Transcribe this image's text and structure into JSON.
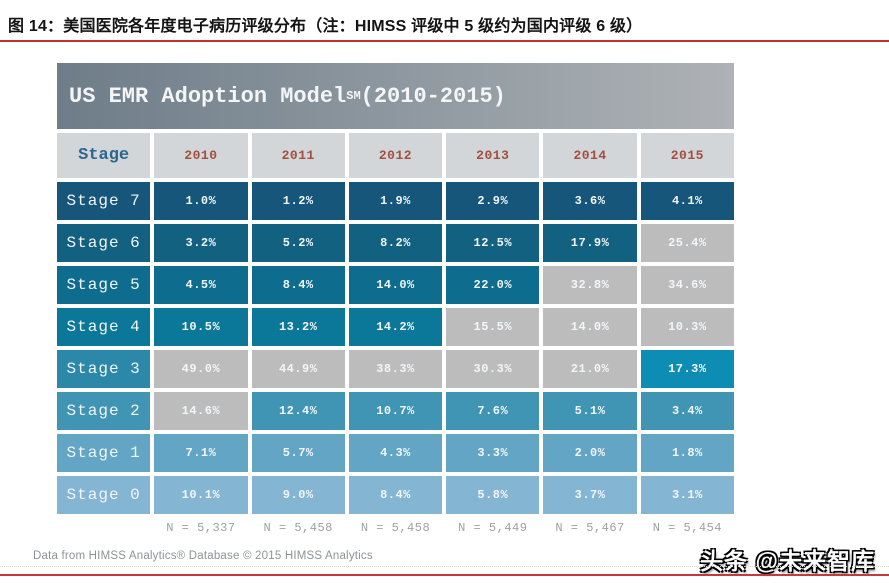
{
  "page": {
    "caption": "图 14：美国医院各年度电子病历评级分布（注：HIMSS 评级中 5 级约为国内评级 6 级）",
    "source_note": "Data from HIMSS Analytics® Database © 2015 HIMSS Analytics",
    "watermark": "头条 @未来智库",
    "accent_red": "#c22f2f"
  },
  "table": {
    "banner": {
      "title": "US EMR Adoption Model",
      "trademark": "SM",
      "range": " (2010-2015)"
    },
    "header": {
      "stage_label": "Stage",
      "years": [
        "2010",
        "2011",
        "2012",
        "2013",
        "2014",
        "2015"
      ]
    },
    "rows": [
      {
        "label": "Stage 7",
        "row_color": "#16567b",
        "values": [
          "1.0%",
          "1.2%",
          "1.9%",
          "2.9%",
          "3.6%",
          "4.1%"
        ],
        "cell_colors": [
          "#16567b",
          "#16567b",
          "#16567b",
          "#16567b",
          "#16567b",
          "#16567b"
        ]
      },
      {
        "label": "Stage 6",
        "row_color": "#126181",
        "values": [
          "3.2%",
          "5.2%",
          "8.2%",
          "12.5%",
          "17.9%",
          "25.4%"
        ],
        "cell_colors": [
          "#126181",
          "#126181",
          "#126181",
          "#126181",
          "#126181",
          "#bcbcbc"
        ]
      },
      {
        "label": "Stage 5",
        "row_color": "#0e6c8f",
        "values": [
          "4.5%",
          "8.4%",
          "14.0%",
          "22.0%",
          "32.8%",
          "34.6%"
        ],
        "cell_colors": [
          "#0e6c8f",
          "#0e6c8f",
          "#0e6c8f",
          "#0e6c8f",
          "#bcbcbc",
          "#bcbcbc"
        ]
      },
      {
        "label": "Stage 4",
        "row_color": "#0c7899",
        "values": [
          "10.5%",
          "13.2%",
          "14.2%",
          "15.5%",
          "14.0%",
          "10.3%"
        ],
        "cell_colors": [
          "#0c7899",
          "#0c7899",
          "#0c7899",
          "#bcbcbc",
          "#bcbcbc",
          "#bcbcbc"
        ]
      },
      {
        "label": "Stage 3",
        "row_color": "#2b88a8",
        "values": [
          "49.0%",
          "44.9%",
          "38.3%",
          "30.3%",
          "21.0%",
          "17.3%"
        ],
        "cell_colors": [
          "#bcbcbc",
          "#bcbcbc",
          "#bcbcbc",
          "#bcbcbc",
          "#bcbcbc",
          "#0e8db4"
        ]
      },
      {
        "label": "Stage 2",
        "row_color": "#4094b4",
        "values": [
          "14.6%",
          "12.4%",
          "10.7%",
          "7.6%",
          "5.1%",
          "3.4%"
        ],
        "cell_colors": [
          "#bcbcbc",
          "#4094b4",
          "#4094b4",
          "#4094b4",
          "#4094b4",
          "#4094b4"
        ]
      },
      {
        "label": "Stage 1",
        "row_color": "#62a5c4",
        "values": [
          "7.1%",
          "5.7%",
          "4.3%",
          "3.3%",
          "2.0%",
          "1.8%"
        ],
        "cell_colors": [
          "#62a5c4",
          "#62a5c4",
          "#62a5c4",
          "#62a5c4",
          "#62a5c4",
          "#62a5c4"
        ]
      },
      {
        "label": "Stage 0",
        "row_color": "#84b6d3",
        "values": [
          "10.1%",
          "9.0%",
          "8.4%",
          "5.8%",
          "3.7%",
          "3.1%"
        ],
        "cell_colors": [
          "#84b6d3",
          "#84b6d3",
          "#84b6d3",
          "#84b6d3",
          "#84b6d3",
          "#84b6d3"
        ]
      }
    ],
    "n_labels": [
      "N = 5,337",
      "N = 5,458",
      "N = 5,458",
      "N = 5,449",
      "N = 5,467",
      "N = 5,454"
    ]
  },
  "chart_data": {
    "type": "table",
    "title": "US EMR Adoption Model SM (2010-2015)",
    "categories": [
      "2010",
      "2011",
      "2012",
      "2013",
      "2014",
      "2015"
    ],
    "unit": "percent of US hospitals",
    "series": [
      {
        "name": "Stage 7",
        "values": [
          1.0,
          1.2,
          1.9,
          2.9,
          3.6,
          4.1
        ]
      },
      {
        "name": "Stage 6",
        "values": [
          3.2,
          5.2,
          8.2,
          12.5,
          17.9,
          25.4
        ]
      },
      {
        "name": "Stage 5",
        "values": [
          4.5,
          8.4,
          14.0,
          22.0,
          32.8,
          34.6
        ]
      },
      {
        "name": "Stage 4",
        "values": [
          10.5,
          13.2,
          14.2,
          15.5,
          14.0,
          10.3
        ]
      },
      {
        "name": "Stage 3",
        "values": [
          49.0,
          44.9,
          38.3,
          30.3,
          21.0,
          17.3
        ]
      },
      {
        "name": "Stage 2",
        "values": [
          14.6,
          12.4,
          10.7,
          7.6,
          5.1,
          3.4
        ]
      },
      {
        "name": "Stage 1",
        "values": [
          7.1,
          5.7,
          4.3,
          3.3,
          2.0,
          1.8
        ]
      },
      {
        "name": "Stage 0",
        "values": [
          10.1,
          9.0,
          8.4,
          5.8,
          3.7,
          3.1
        ]
      }
    ],
    "sample_sizes": {
      "2010": 5337,
      "2011": 5458,
      "2012": 5458,
      "2013": 5449,
      "2014": 5467,
      "2015": 5454
    }
  }
}
